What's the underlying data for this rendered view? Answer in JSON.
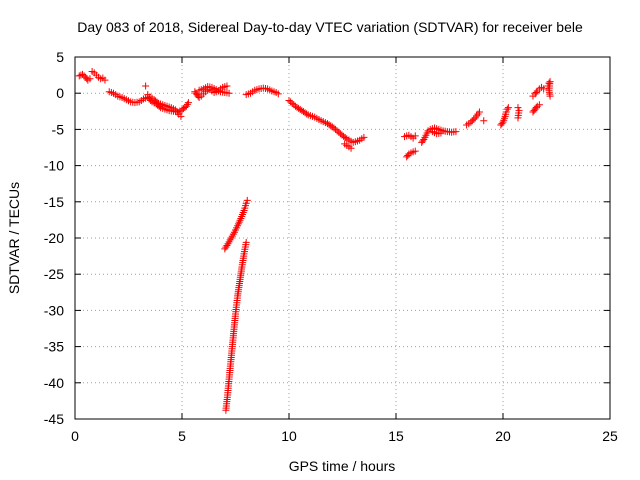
{
  "chart_data": {
    "type": "scatter",
    "title": "Day 083 of 2018, Sidereal Day-to-day VTEC variation (SDTVAR) for receiver bele",
    "xlabel": "GPS time / hours",
    "ylabel": "SDTVAR / TECUs",
    "xlim": [
      0,
      25
    ],
    "ylim": [
      -45,
      5
    ],
    "xticks": [
      0,
      5,
      10,
      15,
      20,
      25
    ],
    "yticks": [
      5,
      0,
      -5,
      -10,
      -15,
      -20,
      -25,
      -30,
      -35,
      -40,
      -45
    ],
    "xtick_labels": [
      "0",
      "5",
      "10",
      "15",
      "20",
      "25"
    ],
    "ytick_labels": [
      "5",
      "0",
      "-5",
      "-10",
      "-15",
      "-20",
      "-25",
      "-30",
      "-35",
      "-40",
      "-45"
    ],
    "grid": true,
    "marker": "plus",
    "marker_color": "#ff0000",
    "series_segments": [
      {
        "name": "arc-a1",
        "points": [
          [
            0.2,
            2.4
          ],
          [
            0.35,
            2.6
          ],
          [
            0.5,
            2.2
          ],
          [
            0.6,
            1.8
          ],
          [
            0.7,
            2.0
          ]
        ]
      },
      {
        "name": "arc-a2",
        "points": [
          [
            0.8,
            3.0
          ],
          [
            0.9,
            2.8
          ],
          [
            1.0,
            2.5
          ],
          [
            1.1,
            2.2
          ],
          [
            1.2,
            2.0
          ],
          [
            1.3,
            2.1
          ],
          [
            1.4,
            1.8
          ]
        ]
      },
      {
        "name": "arc-a3",
        "points": [
          [
            1.6,
            0.2
          ],
          [
            1.8,
            0.0
          ],
          [
            2.0,
            -0.4
          ],
          [
            2.2,
            -0.6
          ],
          [
            2.4,
            -0.9
          ],
          [
            2.6,
            -1.2
          ],
          [
            2.8,
            -1.3
          ],
          [
            3.0,
            -1.2
          ],
          [
            3.2,
            -0.8
          ],
          [
            3.4,
            -0.6
          ],
          [
            3.6,
            -1.2
          ],
          [
            3.8,
            -1.5
          ],
          [
            4.0,
            -2.0
          ],
          [
            4.2,
            -2.2
          ],
          [
            4.4,
            -2.4
          ],
          [
            4.6,
            -2.5
          ],
          [
            4.8,
            -2.6
          ],
          [
            5.0,
            -2.3
          ],
          [
            5.2,
            -1.8
          ],
          [
            5.3,
            -1.3
          ]
        ]
      },
      {
        "name": "arc-a4",
        "points": [
          [
            3.4,
            -0.2
          ],
          [
            3.5,
            -0.5
          ],
          [
            3.7,
            -0.9
          ],
          [
            3.9,
            -1.4
          ],
          [
            4.1,
            -1.6
          ],
          [
            4.3,
            -1.8
          ],
          [
            4.5,
            -2.0
          ],
          [
            4.7,
            -2.3
          ],
          [
            4.85,
            -2.9
          ],
          [
            4.95,
            -3.2
          ]
        ]
      },
      {
        "name": "arc-a5",
        "points": [
          [
            3.3,
            1.0
          ]
        ]
      },
      {
        "name": "arc-b1",
        "points": [
          [
            5.6,
            0.2
          ],
          [
            5.7,
            -0.2
          ],
          [
            5.8,
            -0.6
          ],
          [
            5.9,
            -0.4
          ],
          [
            6.0,
            -0.1
          ],
          [
            6.1,
            0.2
          ],
          [
            6.2,
            0.4
          ],
          [
            6.3,
            0.5
          ],
          [
            6.4,
            0.3
          ],
          [
            6.5,
            0.1
          ],
          [
            6.6,
            0.2
          ],
          [
            6.7,
            0.3
          ],
          [
            6.8,
            0.6
          ],
          [
            6.9,
            0.8
          ],
          [
            7.0,
            0.9
          ],
          [
            7.1,
            1.0
          ]
        ]
      },
      {
        "name": "arc-b2",
        "points": [
          [
            5.8,
            0.4
          ],
          [
            6.0,
            0.6
          ],
          [
            6.2,
            0.9
          ],
          [
            6.4,
            0.8
          ],
          [
            6.6,
            0.5
          ],
          [
            6.8,
            0.2
          ],
          [
            7.0,
            0.1
          ],
          [
            7.2,
            0.0
          ]
        ]
      },
      {
        "name": "arc-c1",
        "points": [
          [
            7.0,
            -21.5
          ],
          [
            7.15,
            -20.8
          ],
          [
            7.3,
            -20.0
          ],
          [
            7.45,
            -19.2
          ],
          [
            7.6,
            -18.3
          ],
          [
            7.75,
            -17.3
          ],
          [
            7.9,
            -16.2
          ],
          [
            8.0,
            -15.2
          ],
          [
            8.05,
            -14.8
          ]
        ]
      },
      {
        "name": "arc-c2",
        "points": [
          [
            7.05,
            -43.8
          ],
          [
            7.12,
            -42.0
          ],
          [
            7.2,
            -39.5
          ],
          [
            7.3,
            -36.5
          ],
          [
            7.4,
            -33.5
          ],
          [
            7.5,
            -30.5
          ],
          [
            7.6,
            -28.0
          ],
          [
            7.7,
            -26.0
          ],
          [
            7.8,
            -24.0
          ],
          [
            7.9,
            -22.2
          ],
          [
            8.0,
            -20.6
          ]
        ]
      },
      {
        "name": "arc-d1",
        "points": [
          [
            8.0,
            -0.2
          ],
          [
            8.2,
            0.0
          ],
          [
            8.4,
            0.4
          ],
          [
            8.6,
            0.6
          ],
          [
            8.8,
            0.7
          ],
          [
            9.0,
            0.6
          ],
          [
            9.2,
            0.3
          ],
          [
            9.4,
            0.1
          ],
          [
            9.5,
            -0.1
          ]
        ]
      },
      {
        "name": "arc-d2",
        "points": [
          [
            10.0,
            -1.0
          ],
          [
            10.3,
            -1.8
          ],
          [
            10.6,
            -2.4
          ],
          [
            10.9,
            -3.0
          ],
          [
            11.2,
            -3.3
          ],
          [
            11.5,
            -3.8
          ],
          [
            11.8,
            -4.2
          ],
          [
            12.1,
            -4.8
          ],
          [
            12.4,
            -5.6
          ],
          [
            12.7,
            -6.3
          ],
          [
            13.0,
            -6.8
          ],
          [
            13.3,
            -6.5
          ],
          [
            13.5,
            -6.1
          ]
        ]
      },
      {
        "name": "arc-d3",
        "points": [
          [
            12.6,
            -7.0
          ],
          [
            12.8,
            -7.4
          ],
          [
            12.9,
            -7.6
          ]
        ]
      },
      {
        "name": "arc-e1",
        "points": [
          [
            15.4,
            -6.0
          ],
          [
            15.6,
            -5.8
          ],
          [
            15.8,
            -6.2
          ],
          [
            15.9,
            -5.9
          ]
        ]
      },
      {
        "name": "arc-e2",
        "points": [
          [
            15.5,
            -8.8
          ],
          [
            15.6,
            -8.4
          ],
          [
            15.8,
            -8.1
          ],
          [
            15.9,
            -8.0
          ]
        ]
      },
      {
        "name": "arc-e3",
        "points": [
          [
            16.2,
            -6.8
          ],
          [
            16.3,
            -6.4
          ],
          [
            16.4,
            -5.8
          ],
          [
            16.5,
            -5.2
          ],
          [
            16.6,
            -5.0
          ],
          [
            16.8,
            -4.8
          ],
          [
            17.0,
            -5.0
          ],
          [
            17.2,
            -5.2
          ],
          [
            17.4,
            -5.3
          ],
          [
            17.6,
            -5.4
          ],
          [
            17.8,
            -5.3
          ]
        ]
      },
      {
        "name": "arc-e4",
        "points": [
          [
            16.7,
            -5.3
          ],
          [
            16.9,
            -5.6
          ],
          [
            17.1,
            -5.5
          ]
        ]
      },
      {
        "name": "arc-f1",
        "points": [
          [
            18.3,
            -4.4
          ],
          [
            18.5,
            -4.0
          ],
          [
            18.7,
            -3.4
          ],
          [
            18.9,
            -2.6
          ]
        ]
      },
      {
        "name": "arc-f2",
        "points": [
          [
            19.1,
            -3.8
          ]
        ]
      },
      {
        "name": "arc-f3",
        "points": [
          [
            19.9,
            -4.4
          ],
          [
            20.0,
            -4.0
          ],
          [
            20.1,
            -3.2
          ],
          [
            20.15,
            -2.6
          ],
          [
            20.2,
            -2.2
          ],
          [
            20.25,
            -2.0
          ]
        ]
      },
      {
        "name": "arc-f4",
        "points": [
          [
            20.7,
            -2.0
          ],
          [
            20.75,
            -2.4
          ],
          [
            20.7,
            -3.4
          ]
        ]
      },
      {
        "name": "arc-f5",
        "points": [
          [
            21.4,
            -2.6
          ],
          [
            21.5,
            -2.2
          ],
          [
            21.6,
            -1.8
          ],
          [
            21.7,
            -1.6
          ]
        ]
      },
      {
        "name": "arc-f6",
        "points": [
          [
            21.4,
            -0.4
          ],
          [
            21.5,
            -0.1
          ],
          [
            21.6,
            0.3
          ],
          [
            21.7,
            0.6
          ],
          [
            21.8,
            0.8
          ],
          [
            21.9,
            0.6
          ]
        ]
      },
      {
        "name": "arc-f7",
        "points": [
          [
            22.1,
            1.0
          ],
          [
            22.15,
            1.4
          ],
          [
            22.2,
            1.6
          ],
          [
            22.15,
            0.4
          ],
          [
            22.2,
            -0.4
          ]
        ]
      }
    ]
  }
}
